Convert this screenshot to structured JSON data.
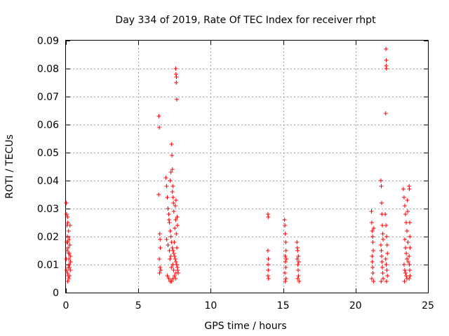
{
  "chart_data": {
    "type": "scatter",
    "title": "Day 334 of 2019, Rate Of TEC Index for receiver rhpt",
    "xlabel": "GPS time / hours",
    "ylabel": "ROTI / TECUs",
    "xlim": [
      0,
      25
    ],
    "ylim": [
      0,
      0.09
    ],
    "xticks": [
      0,
      5,
      10,
      15,
      20,
      25
    ],
    "xtick_labels": [
      "0",
      "5",
      "10",
      "15",
      "20",
      "25"
    ],
    "yticks": [
      0,
      0.01,
      0.02,
      0.03,
      0.04,
      0.05,
      0.06,
      0.07,
      0.08,
      0.09
    ],
    "ytick_labels": [
      "0",
      "0.01",
      "0.02",
      "0.03",
      "0.04",
      "0.05",
      "0.06",
      "0.07",
      "0.08",
      "0.09"
    ],
    "grid": true,
    "marker": "+",
    "color": "#ff0000",
    "series": [
      {
        "name": "ROTI",
        "points": [
          [
            0.02,
            0.032
          ],
          [
            0.05,
            0.028
          ],
          [
            0.08,
            0.024
          ],
          [
            0.1,
            0.02
          ],
          [
            0.12,
            0.018
          ],
          [
            0.15,
            0.016
          ],
          [
            0.18,
            0.014
          ],
          [
            0.2,
            0.012
          ],
          [
            0.22,
            0.01
          ],
          [
            0.25,
            0.009
          ],
          [
            0.05,
            0.008
          ],
          [
            0.1,
            0.007
          ],
          [
            0.15,
            0.006
          ],
          [
            0.2,
            0.005
          ],
          [
            0.25,
            0.006
          ],
          [
            0.3,
            0.008
          ],
          [
            0.03,
            0.012
          ],
          [
            0.08,
            0.015
          ],
          [
            0.13,
            0.025
          ],
          [
            0.18,
            0.022
          ],
          [
            0.22,
            0.019
          ],
          [
            0.27,
            0.017
          ],
          [
            0.3,
            0.013
          ],
          [
            0.32,
            0.011
          ],
          [
            0.12,
            0.004
          ],
          [
            0.28,
            0.024
          ],
          [
            0.06,
            0.018
          ],
          [
            0.16,
            0.009
          ],
          [
            0.24,
            0.014
          ],
          [
            0.11,
            0.027
          ],
          [
            6.42,
            0.063
          ],
          [
            6.45,
            0.059
          ],
          [
            6.4,
            0.035
          ],
          [
            6.48,
            0.021
          ],
          [
            6.5,
            0.019
          ],
          [
            6.52,
            0.016
          ],
          [
            6.45,
            0.012
          ],
          [
            6.5,
            0.009
          ],
          [
            6.55,
            0.008
          ],
          [
            6.47,
            0.007
          ],
          [
            6.9,
            0.041
          ],
          [
            6.95,
            0.038
          ],
          [
            7.0,
            0.034
          ],
          [
            7.05,
            0.03
          ],
          [
            7.1,
            0.028
          ],
          [
            7.15,
            0.025
          ],
          [
            7.2,
            0.022
          ],
          [
            7.25,
            0.02
          ],
          [
            7.3,
            0.018
          ],
          [
            7.35,
            0.016
          ],
          [
            7.4,
            0.015
          ],
          [
            7.45,
            0.014
          ],
          [
            7.5,
            0.013
          ],
          [
            7.55,
            0.012
          ],
          [
            7.6,
            0.011
          ],
          [
            7.65,
            0.01
          ],
          [
            7.7,
            0.009
          ],
          [
            7.72,
            0.008
          ],
          [
            7.75,
            0.007
          ],
          [
            7.0,
            0.006
          ],
          [
            7.1,
            0.005
          ],
          [
            7.2,
            0.004
          ],
          [
            7.3,
            0.004
          ],
          [
            7.4,
            0.005
          ],
          [
            7.5,
            0.006
          ],
          [
            7.6,
            0.007
          ],
          [
            6.95,
            0.019
          ],
          [
            7.05,
            0.017
          ],
          [
            7.15,
            0.015
          ],
          [
            7.25,
            0.013
          ],
          [
            7.3,
            0.053
          ],
          [
            7.32,
            0.049
          ],
          [
            7.35,
            0.044
          ],
          [
            7.38,
            0.038
          ],
          [
            7.4,
            0.034
          ],
          [
            7.42,
            0.032
          ],
          [
            7.2,
            0.04
          ],
          [
            7.25,
            0.043
          ],
          [
            7.35,
            0.036
          ],
          [
            7.45,
            0.029
          ],
          [
            7.58,
            0.08
          ],
          [
            7.6,
            0.078
          ],
          [
            7.62,
            0.075
          ],
          [
            7.63,
            0.077
          ],
          [
            7.65,
            0.069
          ],
          [
            7.55,
            0.031
          ],
          [
            7.6,
            0.033
          ],
          [
            7.68,
            0.027
          ],
          [
            7.7,
            0.024
          ],
          [
            7.62,
            0.021
          ],
          [
            7.48,
            0.018
          ],
          [
            7.52,
            0.023
          ],
          [
            7.58,
            0.026
          ],
          [
            7.66,
            0.016
          ],
          [
            7.12,
            0.026
          ],
          [
            7.18,
            0.012
          ],
          [
            7.28,
            0.009
          ],
          [
            7.38,
            0.01
          ],
          [
            7.44,
            0.008
          ],
          [
            7.56,
            0.005
          ],
          [
            13.95,
            0.028
          ],
          [
            13.97,
            0.027
          ],
          [
            13.95,
            0.015
          ],
          [
            13.98,
            0.012
          ],
          [
            13.96,
            0.01
          ],
          [
            13.97,
            0.008
          ],
          [
            13.95,
            0.006
          ],
          [
            13.99,
            0.005
          ],
          [
            15.1,
            0.026
          ],
          [
            15.12,
            0.024
          ],
          [
            15.15,
            0.021
          ],
          [
            15.18,
            0.018
          ],
          [
            15.2,
            0.015
          ],
          [
            15.14,
            0.013
          ],
          [
            15.16,
            0.011
          ],
          [
            15.18,
            0.009
          ],
          [
            15.12,
            0.007
          ],
          [
            15.2,
            0.005
          ],
          [
            15.15,
            0.004
          ],
          [
            15.22,
            0.012
          ],
          [
            15.95,
            0.018
          ],
          [
            15.98,
            0.016
          ],
          [
            16.0,
            0.015
          ],
          [
            16.05,
            0.013
          ],
          [
            16.08,
            0.011
          ],
          [
            16.02,
            0.01
          ],
          [
            16.04,
            0.008
          ],
          [
            16.06,
            0.006
          ],
          [
            16.0,
            0.005
          ],
          [
            16.1,
            0.004
          ],
          [
            15.97,
            0.012
          ],
          [
            21.1,
            0.029
          ],
          [
            21.12,
            0.025
          ],
          [
            21.15,
            0.022
          ],
          [
            21.18,
            0.02
          ],
          [
            21.2,
            0.018
          ],
          [
            21.22,
            0.015
          ],
          [
            21.14,
            0.013
          ],
          [
            21.16,
            0.011
          ],
          [
            21.18,
            0.009
          ],
          [
            21.2,
            0.007
          ],
          [
            21.12,
            0.005
          ],
          [
            21.24,
            0.004
          ],
          [
            21.26,
            0.023
          ],
          [
            21.75,
            0.04
          ],
          [
            21.78,
            0.038
          ],
          [
            21.8,
            0.032
          ],
          [
            21.82,
            0.028
          ],
          [
            21.85,
            0.024
          ],
          [
            21.88,
            0.021
          ],
          [
            21.9,
            0.019
          ],
          [
            21.75,
            0.017
          ],
          [
            21.78,
            0.015
          ],
          [
            21.8,
            0.013
          ],
          [
            21.82,
            0.011
          ],
          [
            21.85,
            0.009
          ],
          [
            21.88,
            0.007
          ],
          [
            21.9,
            0.005
          ],
          [
            21.77,
            0.004
          ],
          [
            22.1,
            0.087
          ],
          [
            22.12,
            0.083
          ],
          [
            22.11,
            0.081
          ],
          [
            22.13,
            0.08
          ],
          [
            22.08,
            0.064
          ],
          [
            22.05,
            0.028
          ],
          [
            22.1,
            0.024
          ],
          [
            22.15,
            0.02
          ],
          [
            22.18,
            0.017
          ],
          [
            22.2,
            0.014
          ],
          [
            22.08,
            0.012
          ],
          [
            22.12,
            0.01
          ],
          [
            22.16,
            0.008
          ],
          [
            22.2,
            0.006
          ],
          [
            22.14,
            0.004
          ],
          [
            23.3,
            0.037
          ],
          [
            23.35,
            0.034
          ],
          [
            23.4,
            0.031
          ],
          [
            23.45,
            0.028
          ],
          [
            23.5,
            0.025
          ],
          [
            23.55,
            0.022
          ],
          [
            23.4,
            0.019
          ],
          [
            23.45,
            0.016
          ],
          [
            23.5,
            0.014
          ],
          [
            23.55,
            0.012
          ],
          [
            23.35,
            0.01
          ],
          [
            23.4,
            0.008
          ],
          [
            23.45,
            0.007
          ],
          [
            23.5,
            0.006
          ],
          [
            23.55,
            0.005
          ],
          [
            23.38,
            0.004
          ],
          [
            23.7,
            0.038
          ],
          [
            23.72,
            0.037
          ],
          [
            23.74,
            0.025
          ],
          [
            23.75,
            0.02
          ],
          [
            23.76,
            0.016
          ],
          [
            23.7,
            0.013
          ],
          [
            23.72,
            0.01
          ],
          [
            23.74,
            0.008
          ],
          [
            23.76,
            0.006
          ],
          [
            23.7,
            0.005
          ],
          [
            23.58,
            0.033
          ],
          [
            23.6,
            0.029
          ],
          [
            23.62,
            0.018
          ],
          [
            23.64,
            0.011
          ]
        ]
      }
    ]
  }
}
